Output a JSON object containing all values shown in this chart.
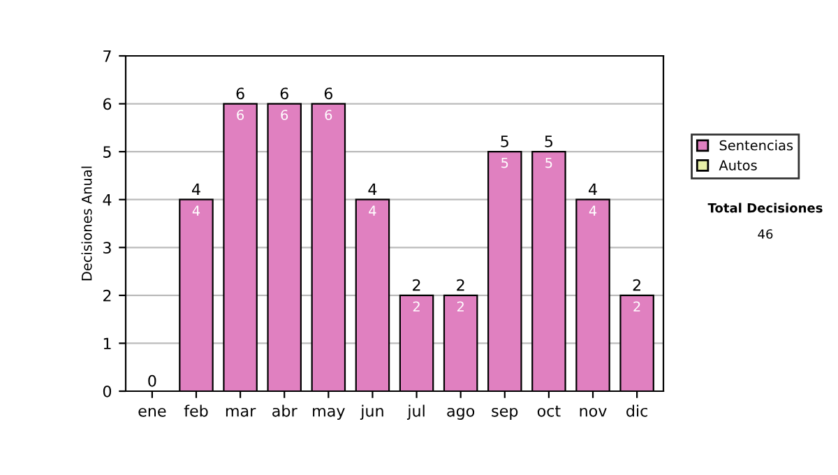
{
  "chart_data": {
    "type": "bar",
    "stacked": true,
    "ylabel": "Decisiones Anual",
    "categories": [
      "ene",
      "feb",
      "mar",
      "abr",
      "may",
      "jun",
      "jul",
      "ago",
      "sep",
      "oct",
      "nov",
      "dic"
    ],
    "series": [
      {
        "name": "Sentencias",
        "color": "#e080c0",
        "values": [
          0,
          4,
          6,
          6,
          6,
          4,
          2,
          2,
          5,
          5,
          4,
          2
        ],
        "value_labels": [
          null,
          "4",
          "6",
          "6",
          "6",
          "4",
          "2",
          "2",
          "5",
          "5",
          "4",
          "2"
        ]
      },
      {
        "name": "Autos",
        "color": "#e8f0a8",
        "values": [
          0,
          0,
          0,
          0,
          0,
          0,
          0,
          0,
          0,
          0,
          0,
          0
        ]
      }
    ],
    "totals": [
      "0",
      "4",
      "6",
      "6",
      "6",
      "4",
      "2",
      "2",
      "5",
      "5",
      "4",
      "2"
    ],
    "ylim": [
      0,
      7
    ],
    "yticks": [
      0,
      1,
      2,
      3,
      4,
      5,
      6,
      7
    ],
    "grid": "y",
    "legend": "right",
    "annotations": [
      "Total Decisiones",
      "46"
    ]
  }
}
